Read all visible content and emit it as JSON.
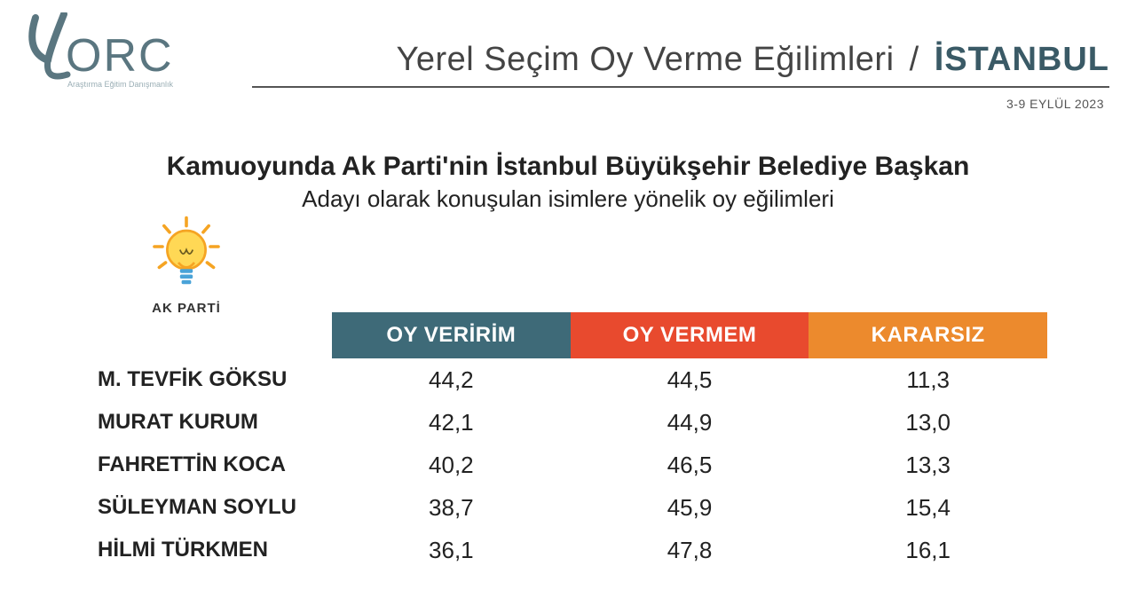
{
  "header": {
    "logo_text": "ORC",
    "logo_sub": "Araştırma Eğitim Danışmanlık",
    "logo_color": "#5a7680",
    "title_prefix": "Yerel Seçim Oy Verme Eğilimleri",
    "title_city": "İSTANBUL",
    "city_color": "#3a5a66",
    "date": "3-9 EYLÜL 2023",
    "rule_color": "#555555"
  },
  "question": {
    "line1": "Kamuoyunda Ak Parti'nin İstanbul Büyükşehir Belediye Başkan",
    "line2": "Adayı olarak konuşulan isimlere yönelik oy eğilimleri",
    "font_size_l1": 30,
    "font_size_l2": 26
  },
  "party": {
    "label": "AK PARTİ",
    "bulb_outer": "#f5a423",
    "bulb_inner": "#ffd855",
    "rays": "#f5a423"
  },
  "table": {
    "type": "table",
    "columns": [
      {
        "label": "OY VERİRİM",
        "bg": "#3e6a78"
      },
      {
        "label": "OY VERMEM",
        "bg": "#e84a2e"
      },
      {
        "label": "KARARSIZ",
        "bg": "#ec8a2d"
      }
    ],
    "header_fontsize": 24,
    "header_text_color": "#ffffff",
    "name_fontsize": 24,
    "value_fontsize": 26,
    "value_color": "#222222",
    "rows": [
      {
        "name": "M. TEVFİK GÖKSU",
        "values": [
          "44,2",
          "44,5",
          "11,3"
        ]
      },
      {
        "name": "MURAT KURUM",
        "values": [
          "42,1",
          "44,9",
          "13,0"
        ]
      },
      {
        "name": "FAHRETTİN KOCA",
        "values": [
          "40,2",
          "46,5",
          "13,3"
        ]
      },
      {
        "name": "SÜLEYMAN SOYLU",
        "values": [
          "38,7",
          "45,9",
          "15,4"
        ]
      },
      {
        "name": "HİLMİ TÜRKMEN",
        "values": [
          "36,1",
          "47,8",
          "16,1"
        ]
      }
    ]
  },
  "background_color": "#ffffff"
}
